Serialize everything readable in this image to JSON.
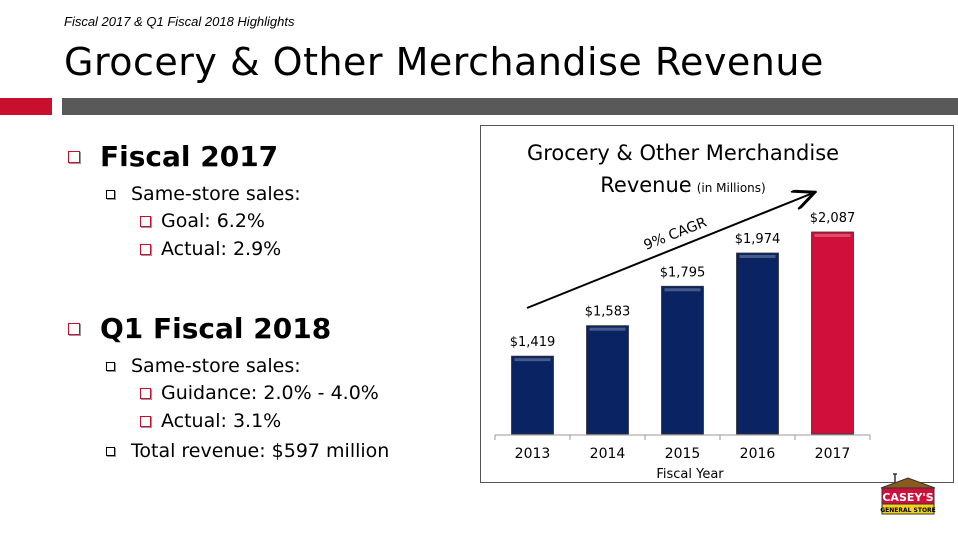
{
  "header": {
    "subtitle": "Fiscal 2017 & Q1 Fiscal 2018 Highlights",
    "title": "Grocery & Other Merchandise Revenue"
  },
  "bullets": {
    "fy17": {
      "heading": "Fiscal 2017",
      "sss": "Same-store sales:",
      "goal": "Goal: 6.2%",
      "actual": "Actual: 2.9%"
    },
    "q118": {
      "heading": "Q1 Fiscal 2018",
      "sss": "Same-store sales:",
      "guidance": "Guidance: 2.0% - 4.0%",
      "actual": "Actual: 3.1%",
      "revenue": "Total revenue: $597 million"
    }
  },
  "logo": {
    "text": "CASEY'S",
    "sub": "GENERAL STORE"
  },
  "chart_data": {
    "type": "bar",
    "title": "Grocery & Other Merchandise",
    "title2": "Revenue",
    "title_unit": "(in Millions)",
    "categories": [
      "2013",
      "2014",
      "2015",
      "2016",
      "2017"
    ],
    "values": [
      1419,
      1583,
      1795,
      1974,
      2087
    ],
    "labels": [
      "$1,419",
      "$1,583",
      "$1,795",
      "$1,974",
      "$2,087"
    ],
    "colors": [
      "#0a2463",
      "#0a2463",
      "#0a2463",
      "#0a2463",
      "#d0103a"
    ],
    "xlabel": "Fiscal Year",
    "ylabel": "",
    "ylim": [
      1000,
      2200
    ],
    "annotation": "9% CAGR"
  }
}
